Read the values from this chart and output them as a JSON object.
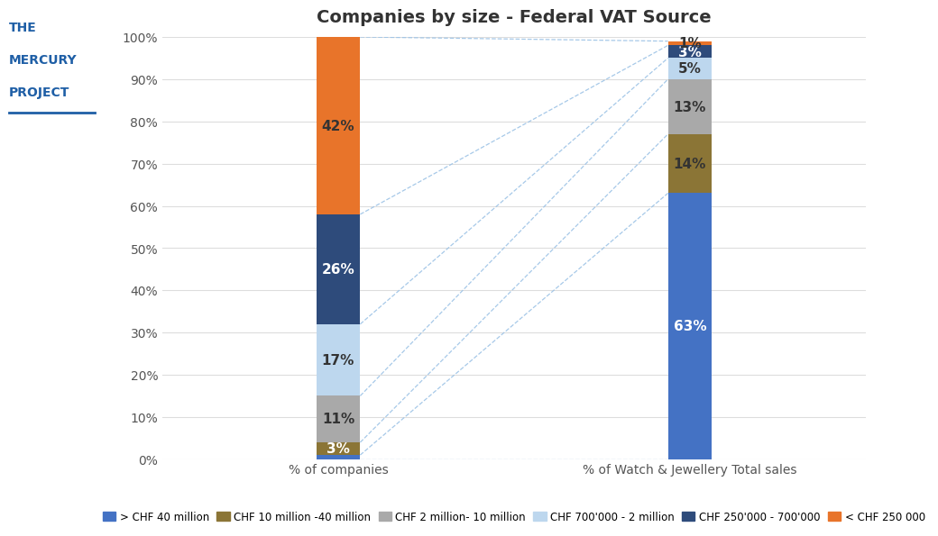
{
  "title": "Companies by size - Federal VAT Source",
  "bar1_label": "% of companies",
  "bar2_label": "% of Watch & Jewellery Total sales",
  "categories": [
    "> CHF 40 million",
    "CHF 10 million -40 million",
    "CHF 2 million- 10 million",
    "CHF 700'000 - 2 million",
    "CHF 250'000 - 700'000",
    "< CHF 250 000"
  ],
  "bar1_values": [
    1,
    3,
    11,
    17,
    26,
    42
  ],
  "bar2_values": [
    63,
    14,
    13,
    5,
    3,
    1
  ],
  "colors": [
    "#4472C4",
    "#8B7536",
    "#A9A9A9",
    "#BDD7EE",
    "#2E4B7B",
    "#E8742A"
  ],
  "bar1_text_colors": [
    "#333333",
    "white",
    "#333333",
    "#333333",
    "white",
    "#333333"
  ],
  "bar2_text_colors": [
    "white",
    "#333333",
    "#333333",
    "#333333",
    "white",
    "#333333"
  ],
  "ylim": [
    0,
    100
  ],
  "yticks": [
    0,
    10,
    20,
    30,
    40,
    50,
    60,
    70,
    80,
    90,
    100
  ],
  "ytick_labels": [
    "0%",
    "10%",
    "20%",
    "30%",
    "40%",
    "50%",
    "60%",
    "70%",
    "80%",
    "90%",
    "100%"
  ],
  "logo_text": [
    "THE",
    "MERCURY",
    "PROJECT"
  ],
  "logo_color": "#1F5FA6",
  "background_color": "#FFFFFF",
  "grid_color": "#DDDDDD",
  "bar_width": 0.25,
  "bar1_x": 1,
  "bar2_x": 3,
  "xlim": [
    0,
    4
  ],
  "connector_color": "#9DC3E6",
  "title_fontsize": 14,
  "axis_label_fontsize": 10,
  "bar_label_fontsize": 11
}
